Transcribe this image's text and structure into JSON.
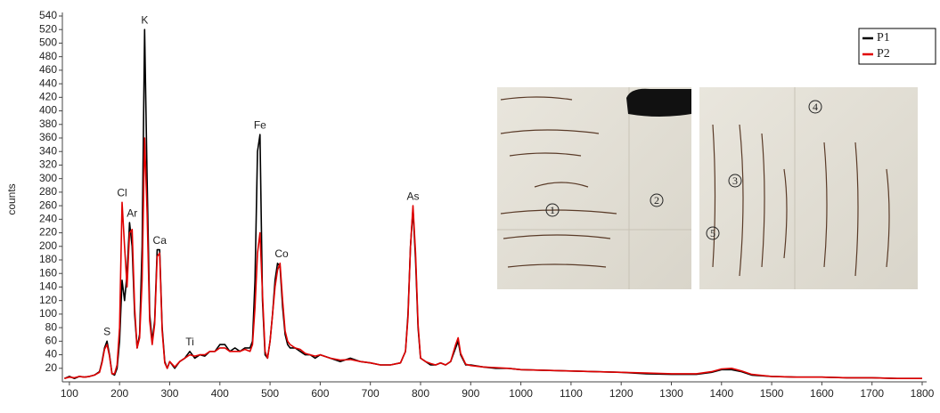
{
  "chart_data": {
    "type": "line",
    "y_label": "counts",
    "x": [
      90,
      100,
      110,
      120,
      130,
      140,
      150,
      160,
      165,
      170,
      175,
      180,
      185,
      190,
      195,
      200,
      205,
      210,
      215,
      220,
      225,
      230,
      235,
      240,
      245,
      250,
      255,
      260,
      265,
      270,
      275,
      280,
      285,
      290,
      295,
      300,
      310,
      320,
      330,
      340,
      350,
      360,
      370,
      380,
      390,
      400,
      410,
      420,
      430,
      440,
      450,
      460,
      465,
      470,
      475,
      480,
      485,
      490,
      495,
      500,
      505,
      510,
      515,
      520,
      525,
      530,
      535,
      540,
      550,
      560,
      570,
      580,
      590,
      600,
      620,
      640,
      660,
      680,
      700,
      720,
      740,
      760,
      770,
      775,
      780,
      785,
      790,
      795,
      800,
      810,
      820,
      830,
      840,
      850,
      860,
      870,
      875,
      880,
      890,
      900,
      925,
      950,
      975,
      1000,
      1050,
      1100,
      1150,
      1200,
      1250,
      1300,
      1350,
      1380,
      1400,
      1420,
      1440,
      1460,
      1500,
      1550,
      1600,
      1650,
      1700,
      1750,
      1800
    ],
    "series": [
      {
        "name": "P1",
        "color": "#000000",
        "values": [
          5,
          8,
          5,
          8,
          7,
          8,
          10,
          15,
          30,
          50,
          60,
          40,
          12,
          10,
          20,
          60,
          150,
          120,
          160,
          235,
          200,
          100,
          50,
          70,
          200,
          520,
          300,
          100,
          60,
          90,
          195,
          195,
          80,
          30,
          20,
          30,
          20,
          30,
          35,
          45,
          35,
          40,
          38,
          45,
          45,
          55,
          55,
          45,
          50,
          45,
          50,
          50,
          60,
          150,
          340,
          365,
          120,
          40,
          35,
          60,
          100,
          150,
          175,
          170,
          110,
          70,
          55,
          50,
          50,
          45,
          40,
          40,
          35,
          40,
          35,
          30,
          35,
          30,
          28,
          25,
          25,
          28,
          45,
          100,
          200,
          255,
          180,
          80,
          35,
          30,
          25,
          25,
          28,
          25,
          30,
          50,
          60,
          40,
          25,
          25,
          22,
          20,
          20,
          18,
          17,
          16,
          15,
          14,
          12,
          11,
          11,
          14,
          18,
          18,
          15,
          10,
          8,
          7,
          7,
          6,
          6,
          5,
          5
        ]
      },
      {
        "name": "P2",
        "color": "#e00000",
        "values": [
          5,
          7,
          6,
          8,
          7,
          8,
          10,
          14,
          28,
          48,
          55,
          38,
          12,
          12,
          25,
          80,
          265,
          200,
          140,
          220,
          225,
          110,
          50,
          65,
          150,
          360,
          250,
          90,
          55,
          85,
          185,
          190,
          75,
          28,
          20,
          30,
          22,
          30,
          35,
          40,
          38,
          40,
          40,
          45,
          45,
          50,
          50,
          45,
          45,
          45,
          48,
          45,
          55,
          110,
          190,
          220,
          130,
          45,
          35,
          60,
          100,
          140,
          165,
          175,
          120,
          75,
          60,
          55,
          50,
          48,
          42,
          40,
          38,
          40,
          35,
          32,
          33,
          30,
          28,
          25,
          25,
          28,
          45,
          95,
          200,
          260,
          190,
          85,
          35,
          30,
          27,
          25,
          28,
          25,
          30,
          55,
          65,
          42,
          26,
          24,
          22,
          21,
          20,
          18,
          17,
          16,
          15,
          14,
          13,
          12,
          12,
          15,
          19,
          20,
          16,
          11,
          8,
          7,
          7,
          6,
          6,
          5,
          5
        ]
      }
    ],
    "xlim": [
      86,
      1800
    ],
    "xticks": [
      100,
      200,
      300,
      400,
      500,
      600,
      700,
      800,
      900,
      1000,
      1100,
      1200,
      1300,
      1400,
      1500,
      1600,
      1700,
      1800
    ],
    "ylim": [
      0,
      540
    ],
    "yticks": [
      20,
      40,
      60,
      80,
      100,
      120,
      140,
      160,
      180,
      200,
      220,
      240,
      260,
      280,
      300,
      320,
      340,
      360,
      380,
      400,
      420,
      440,
      460,
      480,
      500,
      520,
      540
    ],
    "grid": false,
    "legend": "upper right",
    "annotations": [
      {
        "text": "S",
        "x": 175,
        "y": 60
      },
      {
        "text": "Cl",
        "x": 205,
        "y": 265
      },
      {
        "text": "Ar",
        "x": 225,
        "y": 235
      },
      {
        "text": "K",
        "x": 250,
        "y": 520
      },
      {
        "text": "Ca",
        "x": 280,
        "y": 195
      },
      {
        "text": "Ti",
        "x": 340,
        "y": 45
      },
      {
        "text": "Fe",
        "x": 480,
        "y": 365
      },
      {
        "text": "Co",
        "x": 523,
        "y": 175
      },
      {
        "text": "As",
        "x": 785,
        "y": 260
      }
    ],
    "insets": [
      {
        "markers": [
          "1",
          "2"
        ]
      },
      {
        "markers": [
          "3",
          "4",
          "5"
        ]
      }
    ]
  }
}
